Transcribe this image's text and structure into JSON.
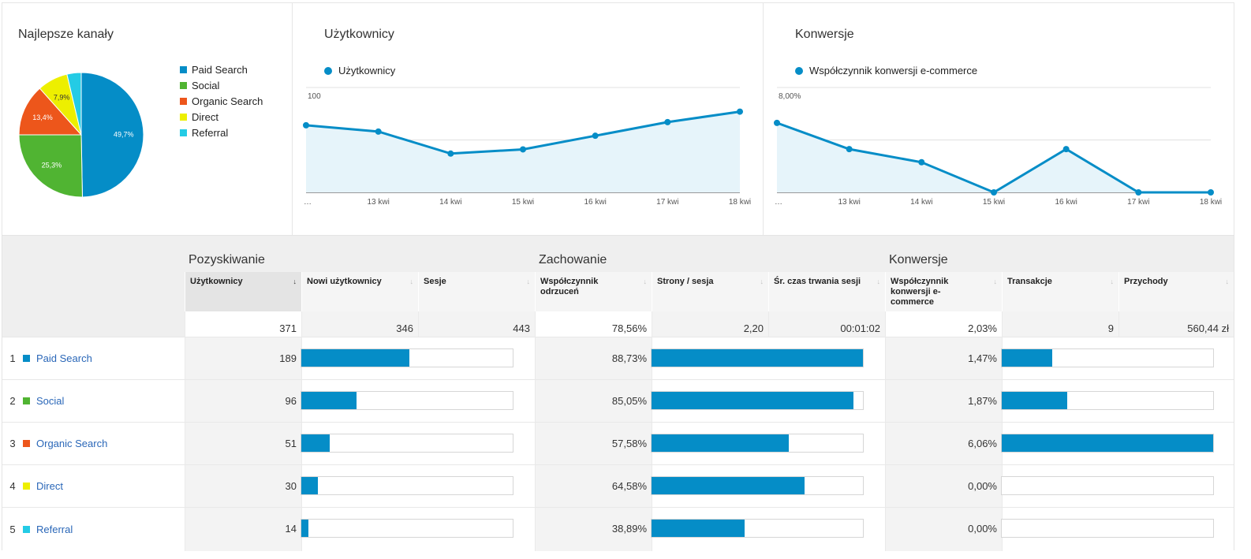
{
  "channels_panel": {
    "title": "Najlepsze kanały",
    "legend": [
      {
        "label": "Paid Search",
        "color": "#058dc7"
      },
      {
        "label": "Social",
        "color": "#50b432"
      },
      {
        "label": "Organic Search",
        "color": "#ed561b"
      },
      {
        "label": "Direct",
        "color": "#edef00"
      },
      {
        "label": "Referral",
        "color": "#24cbe5"
      }
    ]
  },
  "users_panel": {
    "title": "Użytkownicy",
    "series_label": "Użytkownicy"
  },
  "conversions_panel": {
    "title": "Konwersje",
    "series_label": "Współczynnik konwersji e-commerce"
  },
  "chart_data": [
    {
      "type": "pie",
      "categories": [
        "Paid Search",
        "Social",
        "Organic Search",
        "Direct",
        "Referral"
      ],
      "values": [
        49.7,
        25.3,
        13.4,
        7.9,
        3.7
      ],
      "labels": [
        "49,7%",
        "25,3%",
        "13,4%",
        "7,9%",
        ""
      ],
      "colors": [
        "#058dc7",
        "#50b432",
        "#ed561b",
        "#edef00",
        "#24cbe5"
      ]
    },
    {
      "type": "area",
      "x": [
        "…",
        "13 kwi",
        "14 kwi",
        "15 kwi",
        "16 kwi",
        "17 kwi",
        "18 kwi"
      ],
      "series": [
        {
          "name": "Użytkownicy",
          "values": [
            64,
            58,
            37,
            41,
            54,
            67,
            77
          ]
        }
      ],
      "ylim": [
        0,
        100
      ],
      "yticks": [
        {
          "value": 100,
          "label": "100"
        },
        {
          "value": 50,
          "label": "50"
        }
      ],
      "color": "#058dc7",
      "grid": true
    },
    {
      "type": "area",
      "x": [
        "…",
        "13 kwi",
        "14 kwi",
        "15 kwi",
        "16 kwi",
        "17 kwi",
        "18 kwi"
      ],
      "series": [
        {
          "name": "Współczynnik konwersji e-commerce",
          "values": [
            5.3,
            3.3,
            2.3,
            0,
            3.3,
            0,
            0
          ]
        }
      ],
      "ylim": [
        0,
        8
      ],
      "yticks": [
        {
          "value": 8,
          "label": "8,00%"
        },
        {
          "value": 4,
          "label": "4,00%"
        }
      ],
      "color": "#058dc7",
      "grid": true
    }
  ],
  "table": {
    "groups": [
      "Pozyskiwanie",
      "Zachowanie",
      "Konwersje"
    ],
    "columns": [
      {
        "label": "Użytkownicy",
        "sort": "↓"
      },
      {
        "label": "Nowi użytkownicy",
        "sort": "↓"
      },
      {
        "label": "Sesje",
        "sort": "↓"
      },
      {
        "label": "Współczynnik odrzuceń",
        "sort": "↓"
      },
      {
        "label": "Strony / sesja",
        "sort": "↓"
      },
      {
        "label": "Śr. czas trwania sesji",
        "sort": "↓"
      },
      {
        "label": "Współczynnik konwersji e-commerce",
        "sort": "↓"
      },
      {
        "label": "Transakcje",
        "sort": "↓"
      },
      {
        "label": "Przychody",
        "sort": "↓"
      }
    ],
    "totals": [
      "371",
      "346",
      "443",
      "78,56%",
      "2,20",
      "00:01:02",
      "2,03%",
      "9",
      "560,44 zł"
    ],
    "rows": [
      {
        "num": "1",
        "label": "Paid Search",
        "color": "#058dc7",
        "users": "189",
        "new_users_share": 0.51,
        "bounce": "88,73%",
        "bounce_share": 1.0,
        "conv": "1,47%",
        "conv_share": 0.24
      },
      {
        "num": "2",
        "label": "Social",
        "color": "#50b432",
        "users": "96",
        "new_users_share": 0.26,
        "bounce": "85,05%",
        "bounce_share": 0.955,
        "conv": "1,87%",
        "conv_share": 0.31
      },
      {
        "num": "3",
        "label": "Organic Search",
        "color": "#ed561b",
        "users": "51",
        "new_users_share": 0.135,
        "bounce": "57,58%",
        "bounce_share": 0.65,
        "conv": "6,06%",
        "conv_share": 1.0
      },
      {
        "num": "4",
        "label": "Direct",
        "color": "#edef00",
        "users": "30",
        "new_users_share": 0.08,
        "bounce": "64,58%",
        "bounce_share": 0.725,
        "conv": "0,00%",
        "conv_share": 0
      },
      {
        "num": "5",
        "label": "Referral",
        "color": "#24cbe5",
        "users": "14",
        "new_users_share": 0.035,
        "bounce": "38,89%",
        "bounce_share": 0.44,
        "conv": "0,00%",
        "conv_share": 0
      }
    ]
  }
}
